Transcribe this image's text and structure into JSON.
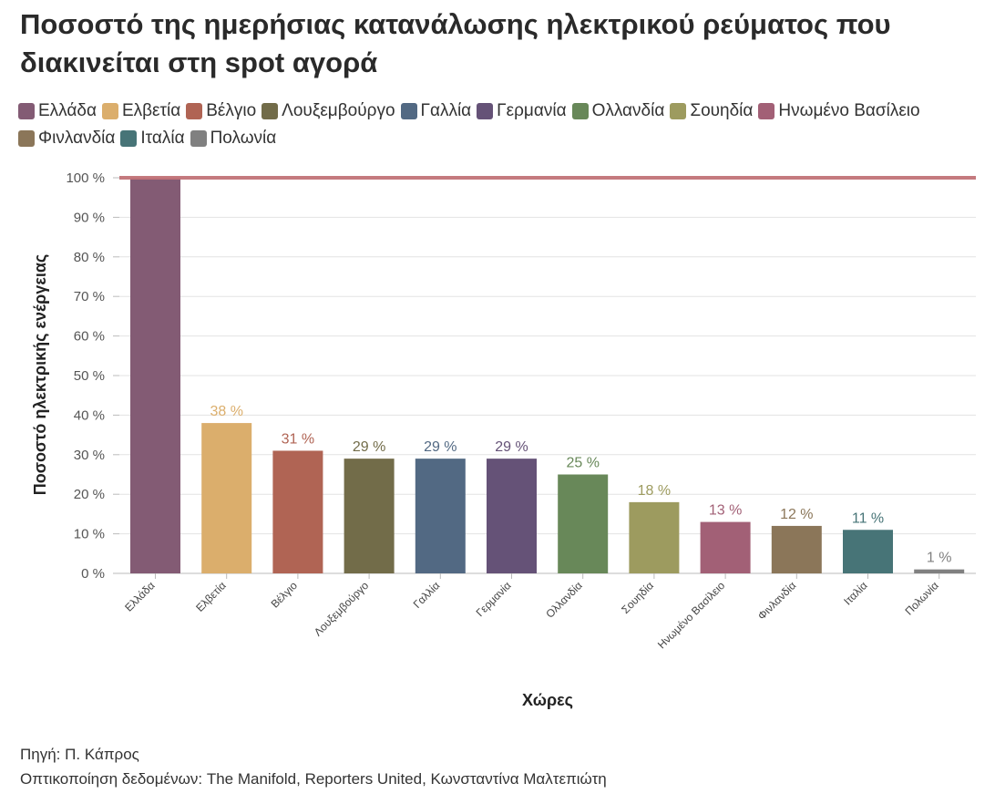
{
  "title": "Ποσοστό της ημερήσιας κατανάλωσης ηλεκτρικού ρεύματος που διακινείται στη spot αγορά",
  "footer": {
    "source": "Πηγή: Π. Κάπρος",
    "credit": "Οπτικοποίηση δεδομένων: The Manifold, Reporters United, Κωνσταντίνα Μαλτεπιώτη"
  },
  "chart_data": {
    "type": "bar",
    "title": "Ποσοστό της ημερήσιας κατανάλωσης ηλεκτρικού ρεύματος που διακινείται στη spot αγορά",
    "xlabel": "Χώρες",
    "ylabel": "Ποσοστό ηλεκτρικής ενέργειας",
    "ylim": [
      0,
      100
    ],
    "yticks": [
      0,
      10,
      20,
      30,
      40,
      50,
      60,
      70,
      80,
      90,
      100
    ],
    "tick_suffix": " %",
    "reference_line": 100,
    "legend_position": "top",
    "grid": true,
    "categories": [
      "Ελλάδα",
      "Ελβετία",
      "Βέλγιο",
      "Λουξεμβούργο",
      "Γαλλία",
      "Γερμανία",
      "Ολλανδία",
      "Σουηδία",
      "Ηνωμένο Βασίλειο",
      "Φινλανδία",
      "Ιταλία",
      "Πολωνία"
    ],
    "values": [
      100,
      38,
      31,
      29,
      29,
      29,
      25,
      18,
      13,
      12,
      11,
      1
    ],
    "data_labels": [
      null,
      "38 %",
      "31 %",
      "29 %",
      "29 %",
      "29 %",
      "25 %",
      "18 %",
      "13 %",
      "12 %",
      "11 %",
      "1 %"
    ],
    "colors": [
      "#835b74",
      "#dbae6c",
      "#b06454",
      "#726c49",
      "#526983",
      "#655277",
      "#688859",
      "#9d9b5f",
      "#a26076",
      "#8b7659",
      "#477477",
      "#808080"
    ],
    "reference_line_color": "#c27378"
  }
}
